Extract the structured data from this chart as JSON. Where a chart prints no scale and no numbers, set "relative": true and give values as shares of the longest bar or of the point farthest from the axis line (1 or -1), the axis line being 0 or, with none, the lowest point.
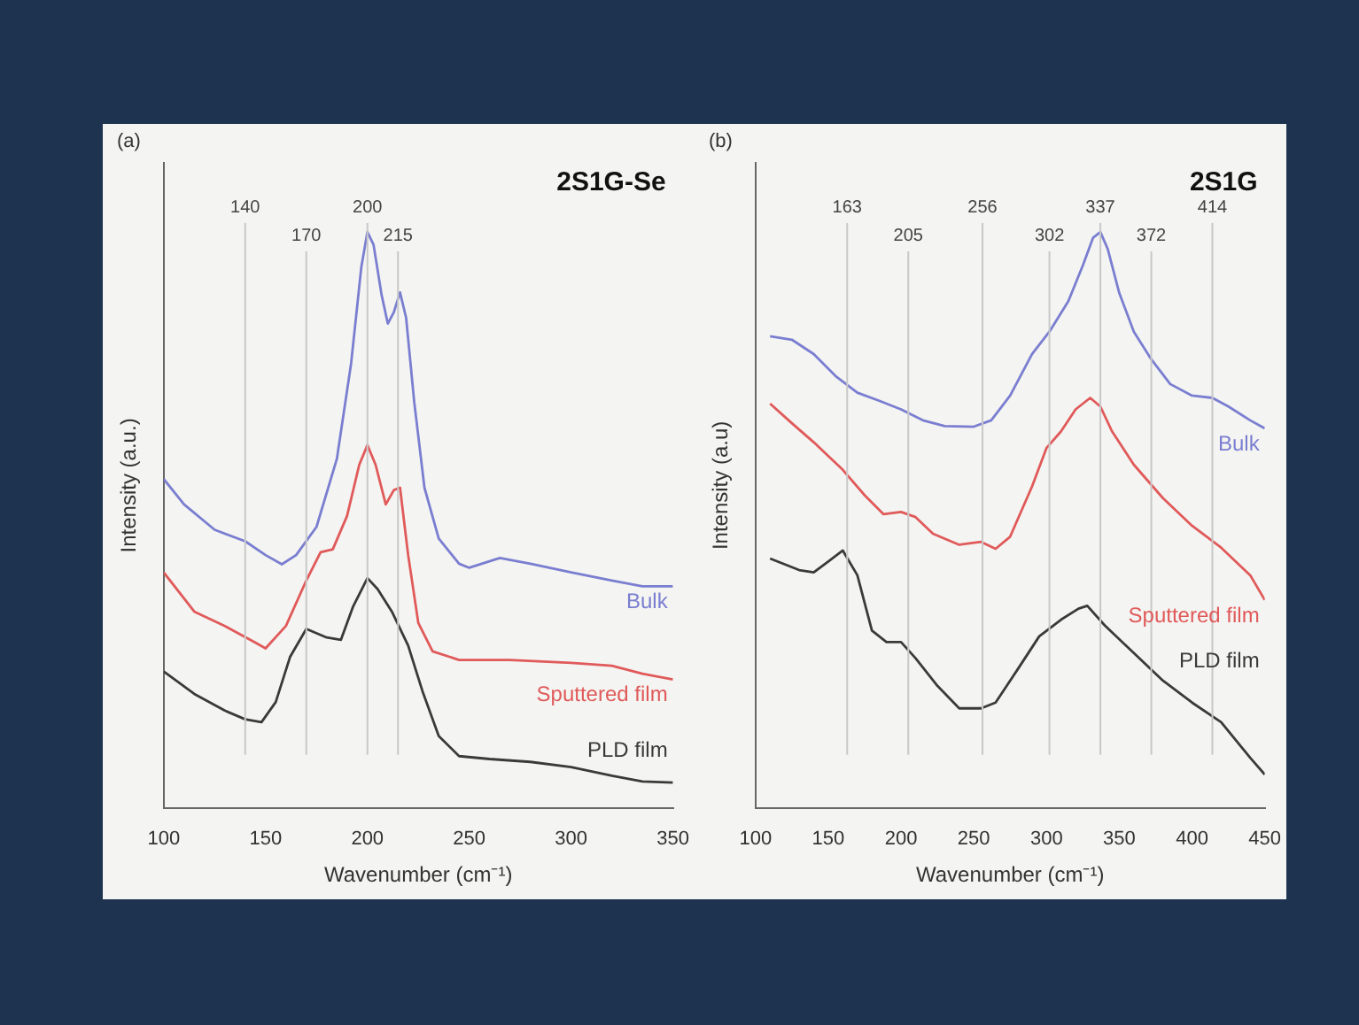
{
  "chart_data": [
    {
      "type": "line",
      "title": "2S1G-Se",
      "annotations": [
        "(a)"
      ],
      "xlabel": "Wavenumber (cm⁻¹)",
      "ylabel": "Intensity (a.u.)",
      "relative": true,
      "xlim": [
        100,
        350
      ],
      "xticks": [
        100,
        150,
        200,
        250,
        300,
        350
      ],
      "grid": false,
      "legend": false,
      "marker": "none",
      "x": [
        100,
        110,
        125,
        140,
        150,
        158,
        165,
        175,
        185,
        192,
        197,
        200,
        203,
        207,
        210,
        213,
        216,
        219,
        223,
        228,
        235,
        245,
        250,
        265,
        280,
        300,
        320,
        335,
        350
      ],
      "series": [
        {
          "name": "Bulk",
          "color": "#7a7ed0",
          "values": [
            0.571,
            0.527,
            0.483,
            0.463,
            0.439,
            0.423,
            0.439,
            0.488,
            0.606,
            0.772,
            0.939,
            1.0,
            0.978,
            0.89,
            0.841,
            0.861,
            0.895,
            0.851,
            0.704,
            0.556,
            0.468,
            0.424,
            0.417,
            0.434,
            0.424,
            0.409,
            0.395,
            0.385,
            0.385
          ]
        },
        {
          "name": "Sputtered film",
          "color": "#e05a5a",
          "x": [
            100,
            115,
            130,
            145,
            150,
            160,
            170,
            177,
            183,
            190,
            196,
            200,
            204,
            209,
            213,
            216,
            220,
            225,
            232,
            245,
            270,
            300,
            320,
            335,
            350
          ],
          "values": [
            0.409,
            0.341,
            0.316,
            0.287,
            0.277,
            0.316,
            0.395,
            0.444,
            0.449,
            0.507,
            0.596,
            0.63,
            0.596,
            0.527,
            0.552,
            0.556,
            0.439,
            0.321,
            0.272,
            0.257,
            0.257,
            0.252,
            0.247,
            0.233,
            0.223
          ]
        },
        {
          "name": "PLD film",
          "color": "#3a3a3a",
          "x": [
            100,
            115,
            130,
            140,
            148,
            155,
            162,
            170,
            180,
            187,
            193,
            200,
            205,
            212,
            220,
            227,
            235,
            245,
            260,
            280,
            300,
            320,
            335,
            350
          ],
          "values": [
            0.237,
            0.198,
            0.169,
            0.154,
            0.149,
            0.184,
            0.262,
            0.311,
            0.296,
            0.292,
            0.35,
            0.399,
            0.38,
            0.341,
            0.282,
            0.203,
            0.125,
            0.09,
            0.085,
            0.08,
            0.071,
            0.056,
            0.046,
            0.044
          ]
        }
      ],
      "ref_lines": [
        {
          "axis": "x",
          "value": 140,
          "label": "140"
        },
        {
          "axis": "x",
          "value": 170,
          "label": "170"
        },
        {
          "axis": "x",
          "value": 200,
          "label": "200"
        },
        {
          "axis": "x",
          "value": 215,
          "label": "215"
        }
      ]
    },
    {
      "type": "line",
      "title": "2S1G",
      "annotations": [
        "(b)"
      ],
      "xlabel": "Wavenumber (cm⁻¹)",
      "ylabel": "Intensity (a.u)",
      "relative": true,
      "xlim": [
        100,
        450
      ],
      "xticks": [
        100,
        150,
        200,
        250,
        300,
        350,
        400,
        450
      ],
      "grid": false,
      "legend": false,
      "marker": "none",
      "x": [
        110,
        125,
        140,
        155,
        170,
        185,
        200,
        215,
        230,
        250,
        262,
        275,
        290,
        302,
        315,
        325,
        332,
        337,
        342,
        350,
        360,
        372,
        385,
        400,
        414,
        425,
        440,
        450
      ],
      "series": [
        {
          "name": "Bulk",
          "color": "#7a7ed0",
          "values": [
            0.819,
            0.813,
            0.788,
            0.75,
            0.721,
            0.707,
            0.692,
            0.673,
            0.663,
            0.662,
            0.673,
            0.716,
            0.788,
            0.827,
            0.88,
            0.942,
            0.99,
            1.0,
            0.971,
            0.894,
            0.827,
            0.779,
            0.736,
            0.716,
            0.712,
            0.697,
            0.673,
            0.659
          ]
        },
        {
          "name": "Sputtered film",
          "color": "#e05a5a",
          "x": [
            110,
            125,
            140,
            160,
            175,
            188,
            200,
            210,
            222,
            240,
            255,
            265,
            275,
            290,
            300,
            310,
            320,
            330,
            337,
            345,
            360,
            380,
            400,
            420,
            440,
            450
          ],
          "values": [
            0.702,
            0.668,
            0.635,
            0.587,
            0.543,
            0.51,
            0.514,
            0.505,
            0.476,
            0.457,
            0.462,
            0.45,
            0.471,
            0.558,
            0.625,
            0.654,
            0.692,
            0.712,
            0.697,
            0.654,
            0.596,
            0.538,
            0.49,
            0.452,
            0.404,
            0.361
          ]
        },
        {
          "name": "PLD film",
          "color": "#3a3a3a",
          "x": [
            110,
            120,
            130,
            140,
            150,
            160,
            170,
            180,
            190,
            200,
            210,
            225,
            240,
            255,
            265,
            280,
            295,
            310,
            322,
            328,
            340,
            360,
            380,
            400,
            420,
            440,
            450
          ],
          "values": [
            0.433,
            0.423,
            0.413,
            0.409,
            0.428,
            0.447,
            0.404,
            0.308,
            0.288,
            0.288,
            0.26,
            0.212,
            0.173,
            0.173,
            0.183,
            0.24,
            0.298,
            0.327,
            0.346,
            0.351,
            0.317,
            0.269,
            0.221,
            0.183,
            0.149,
            0.087,
            0.058
          ]
        }
      ],
      "ref_lines": [
        {
          "axis": "x",
          "value": 163,
          "label": "163"
        },
        {
          "axis": "x",
          "value": 205,
          "label": "205"
        },
        {
          "axis": "x",
          "value": 256,
          "label": "256"
        },
        {
          "axis": "x",
          "value": 302,
          "label": "302"
        },
        {
          "axis": "x",
          "value": 337,
          "label": "337"
        },
        {
          "axis": "x",
          "value": 372,
          "label": "372"
        },
        {
          "axis": "x",
          "value": 414,
          "label": "414"
        }
      ]
    }
  ]
}
